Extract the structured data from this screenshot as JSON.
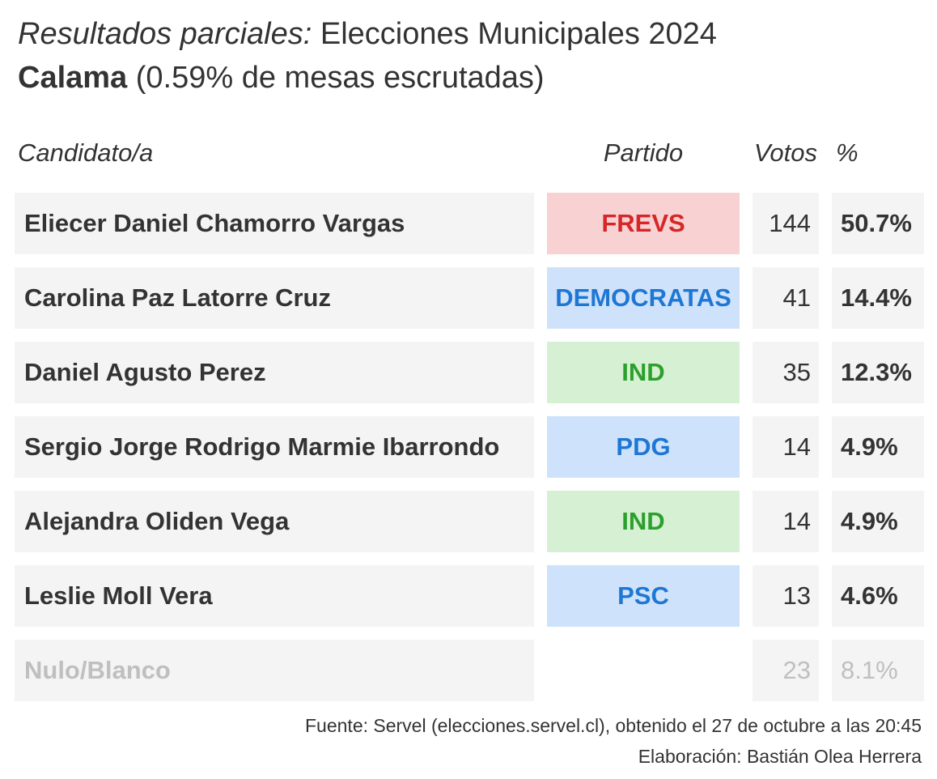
{
  "title": {
    "prefix": "Resultados parciales:",
    "main": " Elecciones Municipales 2024"
  },
  "subtitle": {
    "city": "Calama",
    "detail": " (0.59% de mesas escrutadas)"
  },
  "table": {
    "headers": {
      "candidate": "Candidato/a",
      "party": "Partido",
      "votes": "Votos",
      "percent": "%"
    },
    "rows": [
      {
        "name": "Eliecer Daniel Chamorro Vargas",
        "party": "FREVS",
        "party_bg": "#f8d1d2",
        "party_color": "#d62728",
        "votes": "144",
        "percent": "50.7%"
      },
      {
        "name": "Carolina Paz Latorre Cruz",
        "party": "DEMOCRATAS",
        "party_bg": "#cfe2fb",
        "party_color": "#1f77d4",
        "votes": "41",
        "percent": "14.4%"
      },
      {
        "name": "Daniel Agusto Perez",
        "party": "IND",
        "party_bg": "#d6f0d3",
        "party_color": "#2ca02c",
        "votes": "35",
        "percent": "12.3%"
      },
      {
        "name": "Sergio Jorge Rodrigo Marmie Ibarrondo",
        "party": "PDG",
        "party_bg": "#cfe2fb",
        "party_color": "#1f77d4",
        "votes": "14",
        "percent": "4.9%"
      },
      {
        "name": "Alejandra Oliden Vega",
        "party": "IND",
        "party_bg": "#d6f0d3",
        "party_color": "#2ca02c",
        "votes": "14",
        "percent": "4.9%"
      },
      {
        "name": "Leslie Moll Vera",
        "party": "PSC",
        "party_bg": "#cfe2fb",
        "party_color": "#1f77d4",
        "votes": "13",
        "percent": "4.6%"
      },
      {
        "name": "Nulo/Blanco",
        "party": "",
        "party_bg": "",
        "party_color": "",
        "votes": "23",
        "percent": "8.1%",
        "muted": true
      }
    ]
  },
  "footer": {
    "source": "Fuente: Servel (elecciones.servel.cl), obtenido el 27 de octubre a las 20:45",
    "credit": "Elaboración: Bastián Olea Herrera"
  }
}
